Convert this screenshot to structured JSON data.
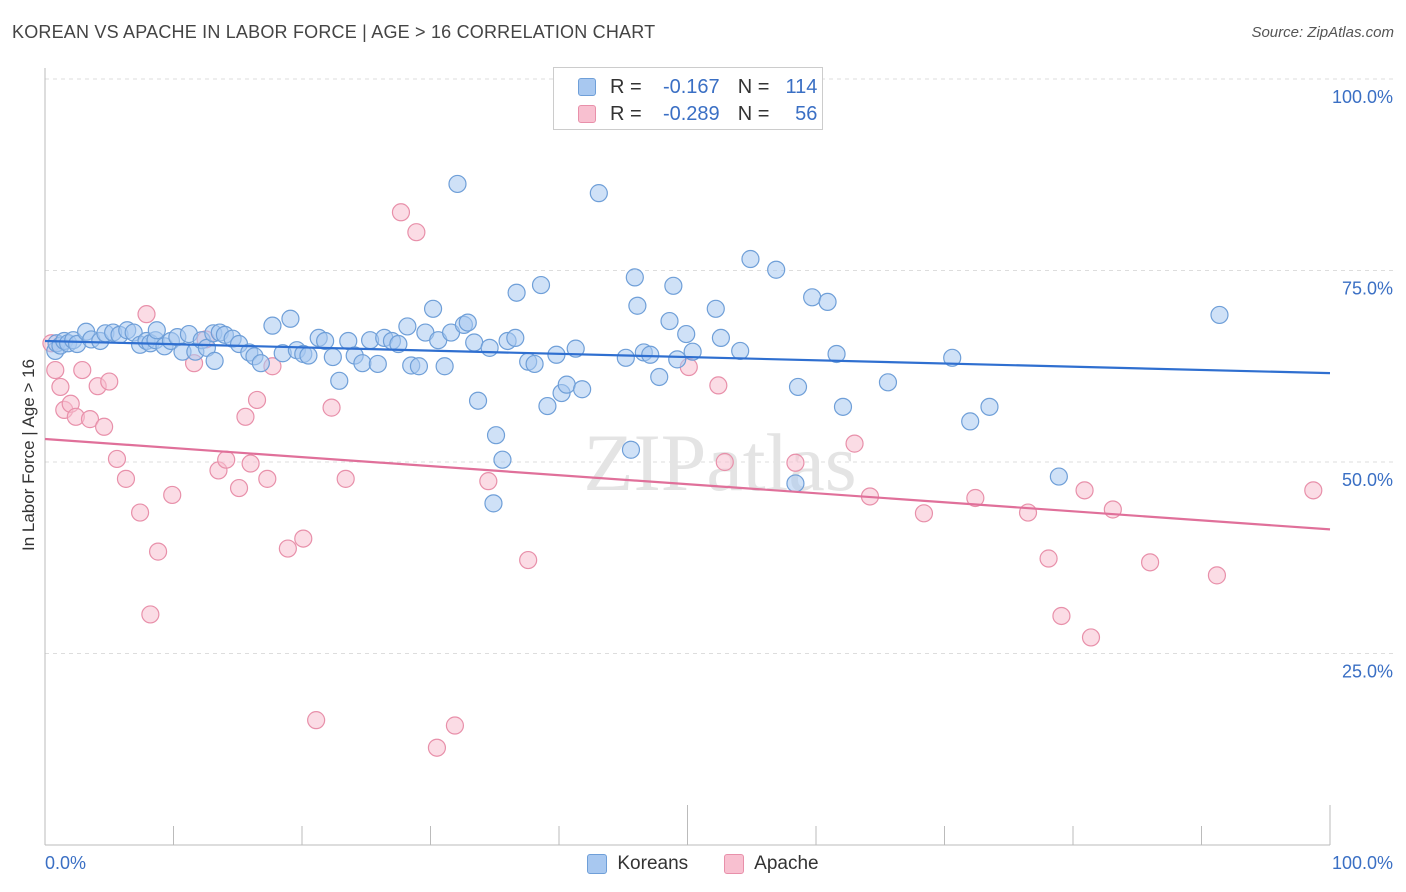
{
  "title": "KOREAN VS APACHE IN LABOR FORCE | AGE > 16 CORRELATION CHART",
  "source": "Source: ZipAtlas.com",
  "colors": {
    "korean_fill": "#a8c8f0",
    "korean_stroke": "#6f9fd8",
    "korean_line": "#2f6fd0",
    "apache_fill": "#f8c0d0",
    "apache_stroke": "#e890aa",
    "apache_line": "#e0709a",
    "tick_label": "#3a6fc4",
    "grid": "#dddddd"
  },
  "legend": {
    "rows": [
      {
        "r_label": "R =",
        "r_value": "-0.167",
        "n_label": "N =",
        "n_value": "114"
      },
      {
        "r_label": "R =",
        "r_value": "-0.289",
        "n_label": "N =",
        "n_value": "56"
      }
    ]
  },
  "bottom_legend": [
    "Koreans",
    "Apache"
  ],
  "watermark": "ZIPatlas",
  "chart_data": {
    "type": "scatter",
    "title": "KOREAN VS APACHE IN LABOR FORCE | AGE > 16 CORRELATION CHART",
    "xlabel": "",
    "ylabel": "In Labor Force | Age > 16",
    "xlim": [
      0,
      100
    ],
    "ylim": [
      0,
      105
    ],
    "x_tick_labels": [
      "0.0%",
      "100.0%"
    ],
    "y_ticks": [
      25,
      50,
      75,
      100
    ],
    "y_tick_labels": [
      "25.0%",
      "50.0%",
      "75.0%",
      "100.0%"
    ],
    "grid": true,
    "series": [
      {
        "name": "Koreans",
        "r": -0.167,
        "n": 114,
        "trend": {
          "x": [
            0,
            100
          ],
          "y": [
            65.8,
            61.6
          ]
        },
        "points": [
          [
            0.8,
            64.5
          ],
          [
            0.9,
            65.5
          ],
          [
            1.2,
            65.2
          ],
          [
            1.5,
            65.8
          ],
          [
            1.8,
            65.5
          ],
          [
            2.2,
            65.9
          ],
          [
            2.5,
            65.4
          ],
          [
            3.2,
            67
          ],
          [
            3.6,
            66
          ],
          [
            4.3,
            65.8
          ],
          [
            4.7,
            66.8
          ],
          [
            5.3,
            66.9
          ],
          [
            5.8,
            66.6
          ],
          [
            6.4,
            67.2
          ],
          [
            6.9,
            66.9
          ],
          [
            7.4,
            65.3
          ],
          [
            7.9,
            65.8
          ],
          [
            8.2,
            65.5
          ],
          [
            8.6,
            65.9
          ],
          [
            9.3,
            65.1
          ],
          [
            9.8,
            65.8
          ],
          [
            10.3,
            66.3
          ],
          [
            10.7,
            64.4
          ],
          [
            11.2,
            66.7
          ],
          [
            11.7,
            64.4
          ],
          [
            12.2,
            65.9
          ],
          [
            12.6,
            64.9
          ],
          [
            13.1,
            66.8
          ],
          [
            13.6,
            66.9
          ],
          [
            14.0,
            66.6
          ],
          [
            14.6,
            66.1
          ],
          [
            15.1,
            65.4
          ],
          [
            15.9,
            64.3
          ],
          [
            16.3,
            63.8
          ],
          [
            16.8,
            62.9
          ],
          [
            17.7,
            67.8
          ],
          [
            18.5,
            64.2
          ],
          [
            19.1,
            68.7
          ],
          [
            19.6,
            64.6
          ],
          [
            20.1,
            64.1
          ],
          [
            20.5,
            63.9
          ],
          [
            21.3,
            66.2
          ],
          [
            21.8,
            65.8
          ],
          [
            22.4,
            63.7
          ],
          [
            22.9,
            60.6
          ],
          [
            23.6,
            65.8
          ],
          [
            24.1,
            63.9
          ],
          [
            24.7,
            62.9
          ],
          [
            25.3,
            65.9
          ],
          [
            25.9,
            62.8
          ],
          [
            26.4,
            66.2
          ],
          [
            27.0,
            65.8
          ],
          [
            27.5,
            65.4
          ],
          [
            28.2,
            67.7
          ],
          [
            28.5,
            62.6
          ],
          [
            29.1,
            62.5
          ],
          [
            29.6,
            66.9
          ],
          [
            30.2,
            70.0
          ],
          [
            30.6,
            65.9
          ],
          [
            31.1,
            62.5
          ],
          [
            31.6,
            66.9
          ],
          [
            32.1,
            86.3
          ],
          [
            32.6,
            67.9
          ],
          [
            32.9,
            68.2
          ],
          [
            33.4,
            65.6
          ],
          [
            33.7,
            58.0
          ],
          [
            34.6,
            64.9
          ],
          [
            35.1,
            53.5
          ],
          [
            35.6,
            50.3
          ],
          [
            34.9,
            44.6
          ],
          [
            36.0,
            65.8
          ],
          [
            36.6,
            66.2
          ],
          [
            36.7,
            72.1
          ],
          [
            37.6,
            63.1
          ],
          [
            38.1,
            62.8
          ],
          [
            38.6,
            73.1
          ],
          [
            39.1,
            57.3
          ],
          [
            39.8,
            64.0
          ],
          [
            40.2,
            59.0
          ],
          [
            40.6,
            60.1
          ],
          [
            41.3,
            64.8
          ],
          [
            41.8,
            59.5
          ],
          [
            43.1,
            85.1
          ],
          [
            45.2,
            63.6
          ],
          [
            45.6,
            51.6
          ],
          [
            45.9,
            74.1
          ],
          [
            46.1,
            70.4
          ],
          [
            46.6,
            64.3
          ],
          [
            47.1,
            64.0
          ],
          [
            47.8,
            61.1
          ],
          [
            48.6,
            68.4
          ],
          [
            48.9,
            73.0
          ],
          [
            49.2,
            63.4
          ],
          [
            49.9,
            66.7
          ],
          [
            50.4,
            64.4
          ],
          [
            52.2,
            70.0
          ],
          [
            52.6,
            66.2
          ],
          [
            54.1,
            64.5
          ],
          [
            54.9,
            76.5
          ],
          [
            56.9,
            75.1
          ],
          [
            58.4,
            47.2
          ],
          [
            58.6,
            59.8
          ],
          [
            59.7,
            71.5
          ],
          [
            60.9,
            70.9
          ],
          [
            61.6,
            64.1
          ],
          [
            62.1,
            57.2
          ],
          [
            65.6,
            60.4
          ],
          [
            70.6,
            63.6
          ],
          [
            72.0,
            55.3
          ],
          [
            73.5,
            57.2
          ],
          [
            78.9,
            48.1
          ],
          [
            91.4,
            69.2
          ],
          [
            8.7,
            67.2
          ],
          [
            13.2,
            63.2
          ]
        ]
      },
      {
        "name": "Apache",
        "r": -0.289,
        "n": 56,
        "trend": {
          "x": [
            0,
            100
          ],
          "y": [
            53.0,
            41.2
          ]
        },
        "points": [
          [
            0.5,
            65.5
          ],
          [
            0.8,
            62.0
          ],
          [
            1.2,
            59.8
          ],
          [
            1.5,
            56.8
          ],
          [
            2.0,
            57.6
          ],
          [
            2.4,
            55.9
          ],
          [
            2.9,
            62.0
          ],
          [
            3.5,
            55.6
          ],
          [
            4.1,
            59.9
          ],
          [
            4.6,
            54.6
          ],
          [
            5.0,
            60.5
          ],
          [
            5.6,
            50.4
          ],
          [
            6.3,
            47.8
          ],
          [
            7.4,
            43.4
          ],
          [
            7.9,
            69.3
          ],
          [
            8.2,
            30.1
          ],
          [
            8.8,
            38.3
          ],
          [
            9.9,
            45.7
          ],
          [
            11.6,
            62.9
          ],
          [
            12.5,
            66.0
          ],
          [
            13.5,
            48.9
          ],
          [
            14.1,
            50.3
          ],
          [
            15.1,
            46.6
          ],
          [
            15.6,
            55.9
          ],
          [
            16.0,
            49.8
          ],
          [
            16.5,
            58.1
          ],
          [
            17.3,
            47.8
          ],
          [
            17.7,
            62.5
          ],
          [
            18.9,
            38.7
          ],
          [
            20.1,
            40.0
          ],
          [
            21.1,
            16.3
          ],
          [
            22.3,
            57.1
          ],
          [
            23.4,
            47.8
          ],
          [
            27.7,
            82.6
          ],
          [
            28.9,
            80.0
          ],
          [
            30.5,
            12.7
          ],
          [
            31.9,
            15.6
          ],
          [
            34.5,
            47.5
          ],
          [
            37.6,
            37.2
          ],
          [
            50.1,
            62.4
          ],
          [
            52.4,
            60.0
          ],
          [
            52.9,
            50.0
          ],
          [
            58.4,
            49.9
          ],
          [
            63.0,
            52.4
          ],
          [
            64.2,
            45.5
          ],
          [
            68.4,
            43.3
          ],
          [
            72.4,
            45.3
          ],
          [
            76.5,
            43.4
          ],
          [
            78.1,
            37.4
          ],
          [
            79.1,
            29.9
          ],
          [
            80.9,
            46.3
          ],
          [
            81.4,
            27.1
          ],
          [
            83.1,
            43.8
          ],
          [
            86.0,
            36.9
          ],
          [
            91.2,
            35.2
          ],
          [
            98.7,
            46.3
          ]
        ]
      }
    ]
  }
}
